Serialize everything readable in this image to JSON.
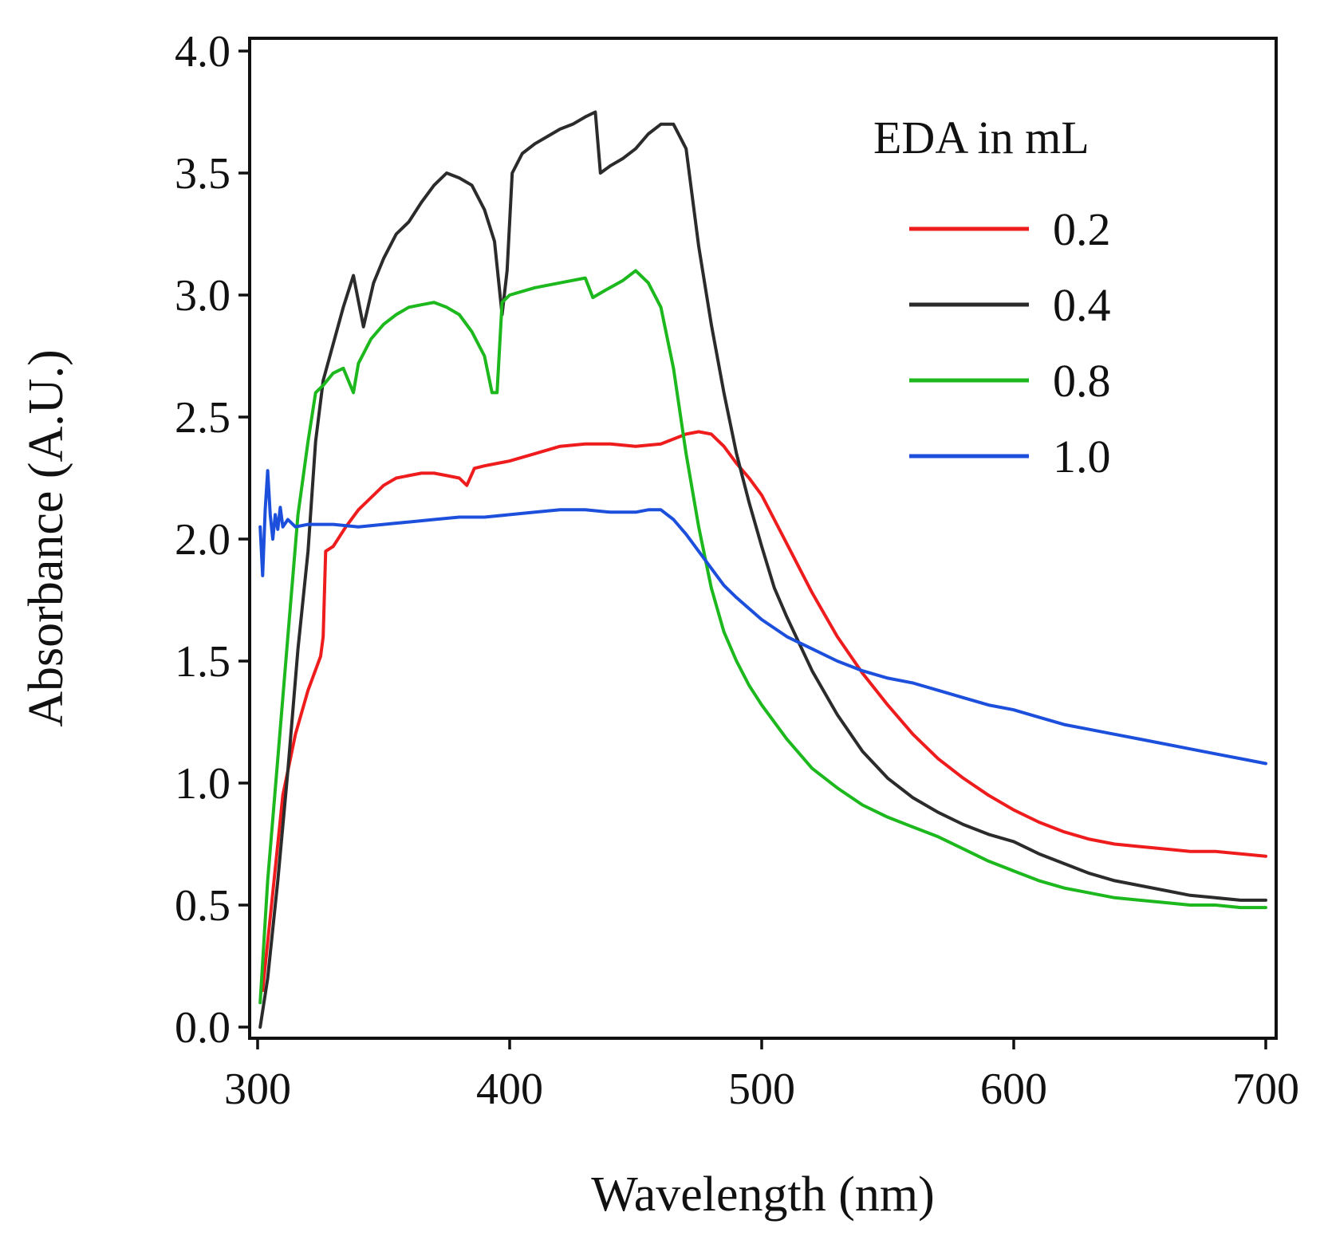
{
  "chart_data": {
    "type": "line",
    "title": "",
    "xlabel": "Wavelength (nm)",
    "ylabel": "Absorbance (A.U.)",
    "xlim": [
      300,
      700
    ],
    "ylim": [
      0,
      4
    ],
    "xticks": [
      300,
      400,
      500,
      600,
      700
    ],
    "xtick_labels": [
      "300",
      "400",
      "500",
      "600",
      "700"
    ],
    "yticks": [
      0,
      0.5,
      1,
      1.5,
      2,
      2.5,
      3,
      3.5,
      4
    ],
    "ytick_labels": [
      "0.0",
      "0.5",
      "1.0",
      "1.5",
      "2.0",
      "2.5",
      "3.0",
      "3.5",
      "4.0"
    ],
    "grid": false,
    "legend": {
      "title": "EDA in mL",
      "position": "top-right"
    },
    "series": [
      {
        "name": "0.2",
        "color": "#ee1c1c",
        "points": [
          [
            302,
            0.15
          ],
          [
            306,
            0.55
          ],
          [
            310,
            0.95
          ],
          [
            315,
            1.2
          ],
          [
            320,
            1.38
          ],
          [
            325,
            1.52
          ],
          [
            326,
            1.6
          ],
          [
            327,
            1.95
          ],
          [
            330,
            1.97
          ],
          [
            335,
            2.05
          ],
          [
            340,
            2.12
          ],
          [
            345,
            2.17
          ],
          [
            350,
            2.22
          ],
          [
            355,
            2.25
          ],
          [
            360,
            2.26
          ],
          [
            365,
            2.27
          ],
          [
            370,
            2.27
          ],
          [
            375,
            2.26
          ],
          [
            380,
            2.25
          ],
          [
            383,
            2.22
          ],
          [
            386,
            2.29
          ],
          [
            390,
            2.3
          ],
          [
            395,
            2.31
          ],
          [
            400,
            2.32
          ],
          [
            410,
            2.35
          ],
          [
            420,
            2.38
          ],
          [
            430,
            2.39
          ],
          [
            440,
            2.39
          ],
          [
            450,
            2.38
          ],
          [
            460,
            2.39
          ],
          [
            470,
            2.43
          ],
          [
            475,
            2.44
          ],
          [
            480,
            2.43
          ],
          [
            485,
            2.38
          ],
          [
            490,
            2.31
          ],
          [
            495,
            2.25
          ],
          [
            500,
            2.18
          ],
          [
            505,
            2.08
          ],
          [
            510,
            1.98
          ],
          [
            520,
            1.78
          ],
          [
            530,
            1.6
          ],
          [
            540,
            1.45
          ],
          [
            550,
            1.32
          ],
          [
            560,
            1.2
          ],
          [
            570,
            1.1
          ],
          [
            580,
            1.02
          ],
          [
            590,
            0.95
          ],
          [
            600,
            0.89
          ],
          [
            610,
            0.84
          ],
          [
            620,
            0.8
          ],
          [
            630,
            0.77
          ],
          [
            640,
            0.75
          ],
          [
            650,
            0.74
          ],
          [
            660,
            0.73
          ],
          [
            670,
            0.72
          ],
          [
            680,
            0.72
          ],
          [
            690,
            0.71
          ],
          [
            700,
            0.7
          ]
        ]
      },
      {
        "name": "0.4",
        "color": "#2b2b2b",
        "points": [
          [
            301,
            0.0
          ],
          [
            304,
            0.2
          ],
          [
            308,
            0.6
          ],
          [
            312,
            1.05
          ],
          [
            316,
            1.55
          ],
          [
            320,
            1.95
          ],
          [
            323,
            2.4
          ],
          [
            326,
            2.65
          ],
          [
            330,
            2.8
          ],
          [
            334,
            2.95
          ],
          [
            338,
            3.08
          ],
          [
            342,
            2.87
          ],
          [
            346,
            3.05
          ],
          [
            350,
            3.15
          ],
          [
            355,
            3.25
          ],
          [
            360,
            3.3
          ],
          [
            365,
            3.38
          ],
          [
            370,
            3.45
          ],
          [
            375,
            3.5
          ],
          [
            380,
            3.48
          ],
          [
            385,
            3.45
          ],
          [
            390,
            3.35
          ],
          [
            394,
            3.22
          ],
          [
            397,
            2.92
          ],
          [
            399,
            3.1
          ],
          [
            401,
            3.5
          ],
          [
            405,
            3.58
          ],
          [
            410,
            3.62
          ],
          [
            415,
            3.65
          ],
          [
            420,
            3.68
          ],
          [
            425,
            3.7
          ],
          [
            430,
            3.73
          ],
          [
            434,
            3.75
          ],
          [
            436,
            3.5
          ],
          [
            440,
            3.53
          ],
          [
            445,
            3.56
          ],
          [
            450,
            3.6
          ],
          [
            455,
            3.66
          ],
          [
            460,
            3.7
          ],
          [
            465,
            3.7
          ],
          [
            470,
            3.6
          ],
          [
            475,
            3.2
          ],
          [
            480,
            2.88
          ],
          [
            485,
            2.6
          ],
          [
            490,
            2.35
          ],
          [
            495,
            2.15
          ],
          [
            500,
            1.97
          ],
          [
            505,
            1.8
          ],
          [
            510,
            1.68
          ],
          [
            520,
            1.46
          ],
          [
            530,
            1.28
          ],
          [
            540,
            1.13
          ],
          [
            550,
            1.02
          ],
          [
            560,
            0.94
          ],
          [
            570,
            0.88
          ],
          [
            580,
            0.83
          ],
          [
            590,
            0.79
          ],
          [
            600,
            0.76
          ],
          [
            610,
            0.71
          ],
          [
            620,
            0.67
          ],
          [
            630,
            0.63
          ],
          [
            640,
            0.6
          ],
          [
            650,
            0.58
          ],
          [
            660,
            0.56
          ],
          [
            670,
            0.54
          ],
          [
            680,
            0.53
          ],
          [
            690,
            0.52
          ],
          [
            700,
            0.52
          ]
        ]
      },
      {
        "name": "0.8",
        "color": "#1db81d",
        "points": [
          [
            301,
            0.1
          ],
          [
            304,
            0.6
          ],
          [
            308,
            1.1
          ],
          [
            312,
            1.6
          ],
          [
            316,
            2.1
          ],
          [
            320,
            2.4
          ],
          [
            323,
            2.6
          ],
          [
            326,
            2.63
          ],
          [
            330,
            2.68
          ],
          [
            334,
            2.7
          ],
          [
            338,
            2.6
          ],
          [
            340,
            2.72
          ],
          [
            345,
            2.82
          ],
          [
            350,
            2.88
          ],
          [
            355,
            2.92
          ],
          [
            360,
            2.95
          ],
          [
            365,
            2.96
          ],
          [
            370,
            2.97
          ],
          [
            375,
            2.95
          ],
          [
            380,
            2.92
          ],
          [
            385,
            2.85
          ],
          [
            390,
            2.75
          ],
          [
            393,
            2.6
          ],
          [
            395,
            2.6
          ],
          [
            397,
            2.97
          ],
          [
            400,
            3.0
          ],
          [
            410,
            3.03
          ],
          [
            420,
            3.05
          ],
          [
            430,
            3.07
          ],
          [
            433,
            2.99
          ],
          [
            438,
            3.02
          ],
          [
            445,
            3.06
          ],
          [
            450,
            3.1
          ],
          [
            455,
            3.05
          ],
          [
            460,
            2.95
          ],
          [
            465,
            2.7
          ],
          [
            470,
            2.35
          ],
          [
            475,
            2.05
          ],
          [
            480,
            1.8
          ],
          [
            485,
            1.62
          ],
          [
            490,
            1.5
          ],
          [
            495,
            1.4
          ],
          [
            500,
            1.32
          ],
          [
            510,
            1.18
          ],
          [
            520,
            1.06
          ],
          [
            530,
            0.98
          ],
          [
            540,
            0.91
          ],
          [
            550,
            0.86
          ],
          [
            560,
            0.82
          ],
          [
            570,
            0.78
          ],
          [
            580,
            0.73
          ],
          [
            590,
            0.68
          ],
          [
            600,
            0.64
          ],
          [
            610,
            0.6
          ],
          [
            620,
            0.57
          ],
          [
            630,
            0.55
          ],
          [
            640,
            0.53
          ],
          [
            650,
            0.52
          ],
          [
            660,
            0.51
          ],
          [
            670,
            0.5
          ],
          [
            680,
            0.5
          ],
          [
            690,
            0.49
          ],
          [
            700,
            0.49
          ]
        ]
      },
      {
        "name": "1.0",
        "color": "#1c4fdc",
        "points": [
          [
            301,
            2.05
          ],
          [
            302,
            1.85
          ],
          [
            303,
            2.12
          ],
          [
            304,
            2.28
          ],
          [
            305,
            2.1
          ],
          [
            306,
            2.0
          ],
          [
            307,
            2.1
          ],
          [
            308,
            2.04
          ],
          [
            309,
            2.13
          ],
          [
            310,
            2.05
          ],
          [
            312,
            2.08
          ],
          [
            315,
            2.05
          ],
          [
            320,
            2.06
          ],
          [
            330,
            2.06
          ],
          [
            340,
            2.05
          ],
          [
            350,
            2.06
          ],
          [
            360,
            2.07
          ],
          [
            370,
            2.08
          ],
          [
            380,
            2.09
          ],
          [
            390,
            2.09
          ],
          [
            400,
            2.1
          ],
          [
            410,
            2.11
          ],
          [
            420,
            2.12
          ],
          [
            430,
            2.12
          ],
          [
            440,
            2.11
          ],
          [
            450,
            2.11
          ],
          [
            455,
            2.12
          ],
          [
            460,
            2.12
          ],
          [
            465,
            2.08
          ],
          [
            470,
            2.02
          ],
          [
            475,
            1.95
          ],
          [
            480,
            1.88
          ],
          [
            485,
            1.81
          ],
          [
            490,
            1.76
          ],
          [
            500,
            1.67
          ],
          [
            510,
            1.6
          ],
          [
            520,
            1.55
          ],
          [
            530,
            1.5
          ],
          [
            540,
            1.46
          ],
          [
            550,
            1.43
          ],
          [
            560,
            1.41
          ],
          [
            570,
            1.38
          ],
          [
            580,
            1.35
          ],
          [
            590,
            1.32
          ],
          [
            600,
            1.3
          ],
          [
            610,
            1.27
          ],
          [
            620,
            1.24
          ],
          [
            630,
            1.22
          ],
          [
            640,
            1.2
          ],
          [
            650,
            1.18
          ],
          [
            660,
            1.16
          ],
          [
            670,
            1.14
          ],
          [
            680,
            1.12
          ],
          [
            690,
            1.1
          ],
          [
            700,
            1.08
          ]
        ]
      }
    ]
  }
}
